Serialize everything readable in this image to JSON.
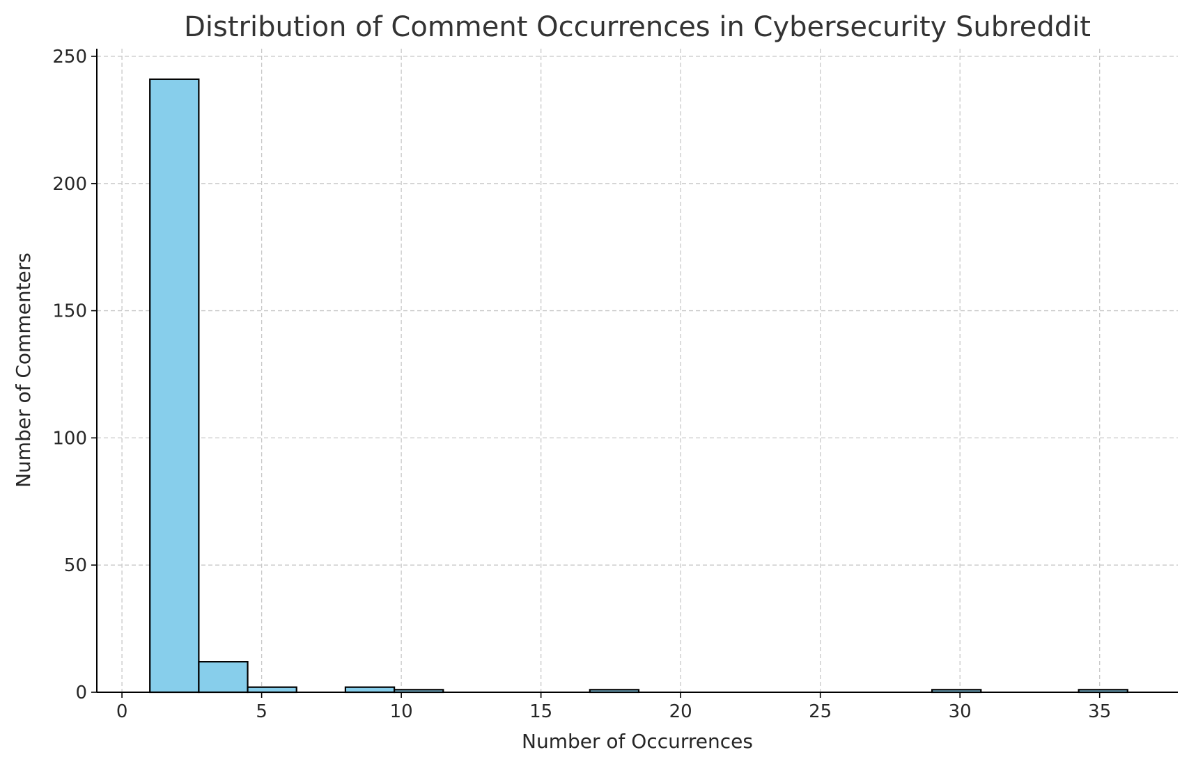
{
  "chart_data": {
    "type": "bar",
    "title": "Distribution of Comment Occurrences in Cybersecurity Subreddit",
    "xlabel": "Number of Occurrences",
    "ylabel": "Number of Commenters",
    "xlim": [
      -0.9,
      37.8
    ],
    "ylim": [
      0,
      253
    ],
    "xticks": [
      0,
      5,
      10,
      15,
      20,
      25,
      30,
      35
    ],
    "yticks": [
      0,
      50,
      100,
      150,
      200,
      250
    ],
    "grid": true,
    "bar_color": "#87CEEB",
    "edge_color": "#000000",
    "bins": [
      {
        "x0": 1.0,
        "x1": 2.75,
        "value": 241
      },
      {
        "x0": 2.75,
        "x1": 4.5,
        "value": 12
      },
      {
        "x0": 4.5,
        "x1": 6.25,
        "value": 2
      },
      {
        "x0": 6.25,
        "x1": 8.0,
        "value": 0
      },
      {
        "x0": 8.0,
        "x1": 9.75,
        "value": 2
      },
      {
        "x0": 9.75,
        "x1": 11.5,
        "value": 1
      },
      {
        "x0": 11.5,
        "x1": 13.25,
        "value": 0
      },
      {
        "x0": 13.25,
        "x1": 15.0,
        "value": 0
      },
      {
        "x0": 15.0,
        "x1": 16.75,
        "value": 0
      },
      {
        "x0": 16.75,
        "x1": 18.5,
        "value": 1
      },
      {
        "x0": 18.5,
        "x1": 20.25,
        "value": 0
      },
      {
        "x0": 20.25,
        "x1": 22.0,
        "value": 0
      },
      {
        "x0": 22.0,
        "x1": 23.75,
        "value": 0
      },
      {
        "x0": 23.75,
        "x1": 25.5,
        "value": 0
      },
      {
        "x0": 25.5,
        "x1": 27.25,
        "value": 0
      },
      {
        "x0": 27.25,
        "x1": 29.0,
        "value": 0
      },
      {
        "x0": 29.0,
        "x1": 30.75,
        "value": 1
      },
      {
        "x0": 30.75,
        "x1": 32.5,
        "value": 0
      },
      {
        "x0": 32.5,
        "x1": 34.25,
        "value": 0
      },
      {
        "x0": 34.25,
        "x1": 36.0,
        "value": 1
      }
    ]
  }
}
